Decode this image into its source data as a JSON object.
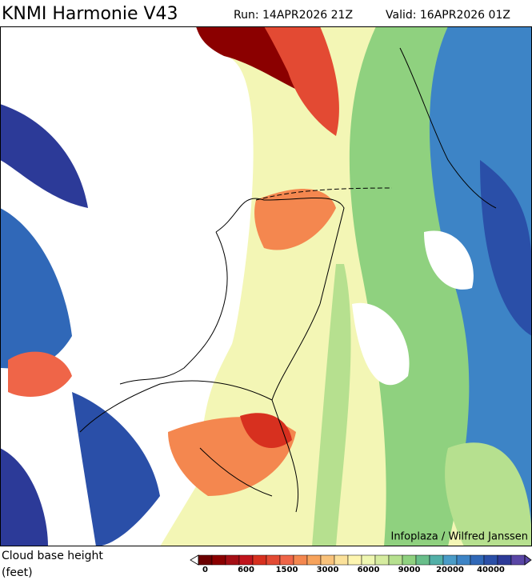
{
  "header": {
    "title": "KNMI Harmonie V43",
    "run": "Run: 14APR2026 21Z",
    "valid": "Valid: 16APR2026 01Z"
  },
  "credit": "Infoplaza / Wilfred Janssen",
  "legend": {
    "title": "Cloud base height",
    "unit": "(feet)",
    "ticks": [
      0,
      600,
      1500,
      3000,
      6000,
      9000,
      20000,
      40000
    ],
    "colors": [
      "#6b0000",
      "#8b0000",
      "#a50f15",
      "#c0141c",
      "#d7301f",
      "#e34a33",
      "#ef6548",
      "#f4874f",
      "#f7a35c",
      "#f9c27a",
      "#fbe19a",
      "#fdf5b0",
      "#eef6b0",
      "#d6eca0",
      "#b6e08f",
      "#8fd17f",
      "#69be8a",
      "#52b0a8",
      "#4a9cc8",
      "#3d84c6",
      "#3068b8",
      "#2a4fa8",
      "#2c3a98",
      "#5a46a6"
    ]
  }
}
